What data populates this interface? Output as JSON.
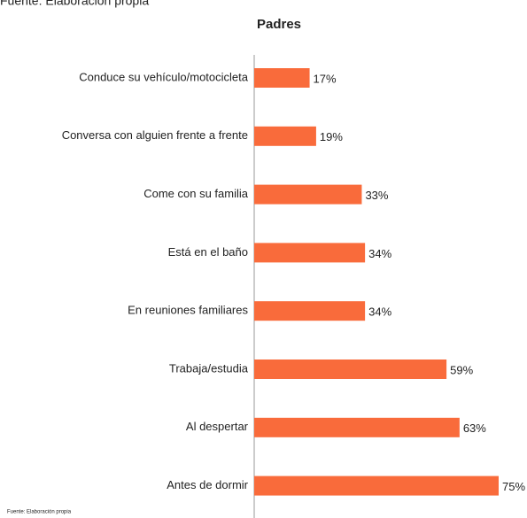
{
  "chart_data": {
    "type": "bar",
    "orientation": "horizontal",
    "source_top": "Fuente: Elaboración propia",
    "title": "Padres",
    "categories": [
      "Conduce su vehículo/motocicleta",
      "Conversa con alguien frente a frente",
      "Come con su familia",
      "Está en el baño",
      "En reuniones familiares",
      "Trabaja/estudia",
      "Al despertar",
      "Antes de dormir"
    ],
    "values": [
      17,
      19,
      33,
      34,
      34,
      59,
      63,
      75
    ],
    "value_labels": [
      "17%",
      "19%",
      "33%",
      "34%",
      "34%",
      "59%",
      "63%",
      "75%"
    ],
    "color": "#f96b3b",
    "source": "Fuente: Elaboración propia"
  }
}
